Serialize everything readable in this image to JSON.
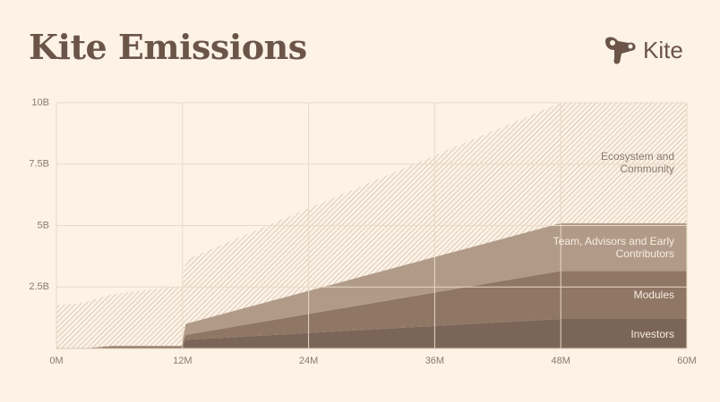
{
  "chart_data": {
    "type": "area",
    "stacked": true,
    "title": "Kite Emissions",
    "logo": "Kite",
    "x": [
      0,
      2.5,
      5.3,
      11,
      11.9,
      12.3,
      48,
      60
    ],
    "series": [
      {
        "name": "Investors",
        "color": "#7b6558",
        "values": [
          0,
          0,
          0.05,
          0.05,
          0.05,
          0.35,
          1.2,
          1.2
        ]
      },
      {
        "name": "Modules",
        "color": "#8f7665",
        "values": [
          0,
          0,
          0.05,
          0.05,
          0.05,
          0.2,
          1.95,
          1.95
        ]
      },
      {
        "name": "Team, Advisors and Early Contributors",
        "color": "#b19b88",
        "values": [
          0,
          0,
          0,
          0,
          0,
          0.45,
          1.95,
          1.95
        ]
      },
      {
        "name": "Ecosystem and Community",
        "color": "#cbb6a4",
        "hatched": true,
        "values": [
          1.75,
          1.85,
          2.1,
          2.4,
          2.4,
          2.6,
          4.9,
          4.9
        ]
      }
    ],
    "xlim": [
      0,
      60
    ],
    "xticks": [
      {
        "value": 0,
        "label": "0M"
      },
      {
        "value": 12,
        "label": "12M"
      },
      {
        "value": 24,
        "label": "24M"
      },
      {
        "value": 36,
        "label": "36M"
      },
      {
        "value": 48,
        "label": "48M"
      },
      {
        "value": 60,
        "label": "60M"
      }
    ],
    "ylim": [
      0,
      10
    ],
    "yticks": [
      {
        "value": 2.5,
        "label": "2.5B"
      },
      {
        "value": 5,
        "label": "5B"
      },
      {
        "value": 7.5,
        "label": "7.5B"
      },
      {
        "value": 10,
        "label": "10B"
      }
    ],
    "grid": true
  }
}
